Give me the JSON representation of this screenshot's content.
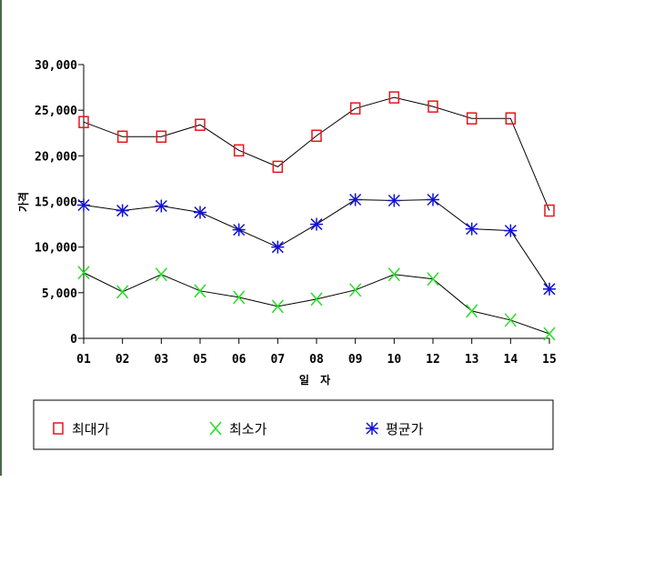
{
  "chart_data": {
    "type": "line",
    "categories": [
      "01",
      "02",
      "03",
      "05",
      "06",
      "07",
      "08",
      "09",
      "10",
      "12",
      "13",
      "14",
      "15"
    ],
    "xlabel": "일 자",
    "ylabel": "가격",
    "ylim": [
      0,
      30000
    ],
    "yticks": [
      "0",
      "5,000",
      "10,000",
      "15,000",
      "20,000",
      "25,000",
      "30,000"
    ],
    "grid": false,
    "legend_position": "bottom",
    "series": [
      {
        "name": "최대가",
        "marker": "square",
        "color": "#e8141c",
        "values": [
          23700,
          22100,
          22100,
          23400,
          20600,
          18800,
          22200,
          25200,
          26400,
          25400,
          24100,
          24100,
          14000
        ]
      },
      {
        "name": "최소가",
        "marker": "x",
        "color": "#22e022",
        "values": [
          7200,
          5100,
          7000,
          5200,
          4500,
          3500,
          4300,
          5300,
          7000,
          6500,
          3000,
          2000,
          500
        ]
      },
      {
        "name": "평균가",
        "marker": "asterisk",
        "color": "#1010d8",
        "values": [
          14600,
          14000,
          14500,
          13800,
          11900,
          10000,
          12500,
          15200,
          15100,
          15200,
          12000,
          11800,
          5400
        ]
      }
    ]
  }
}
